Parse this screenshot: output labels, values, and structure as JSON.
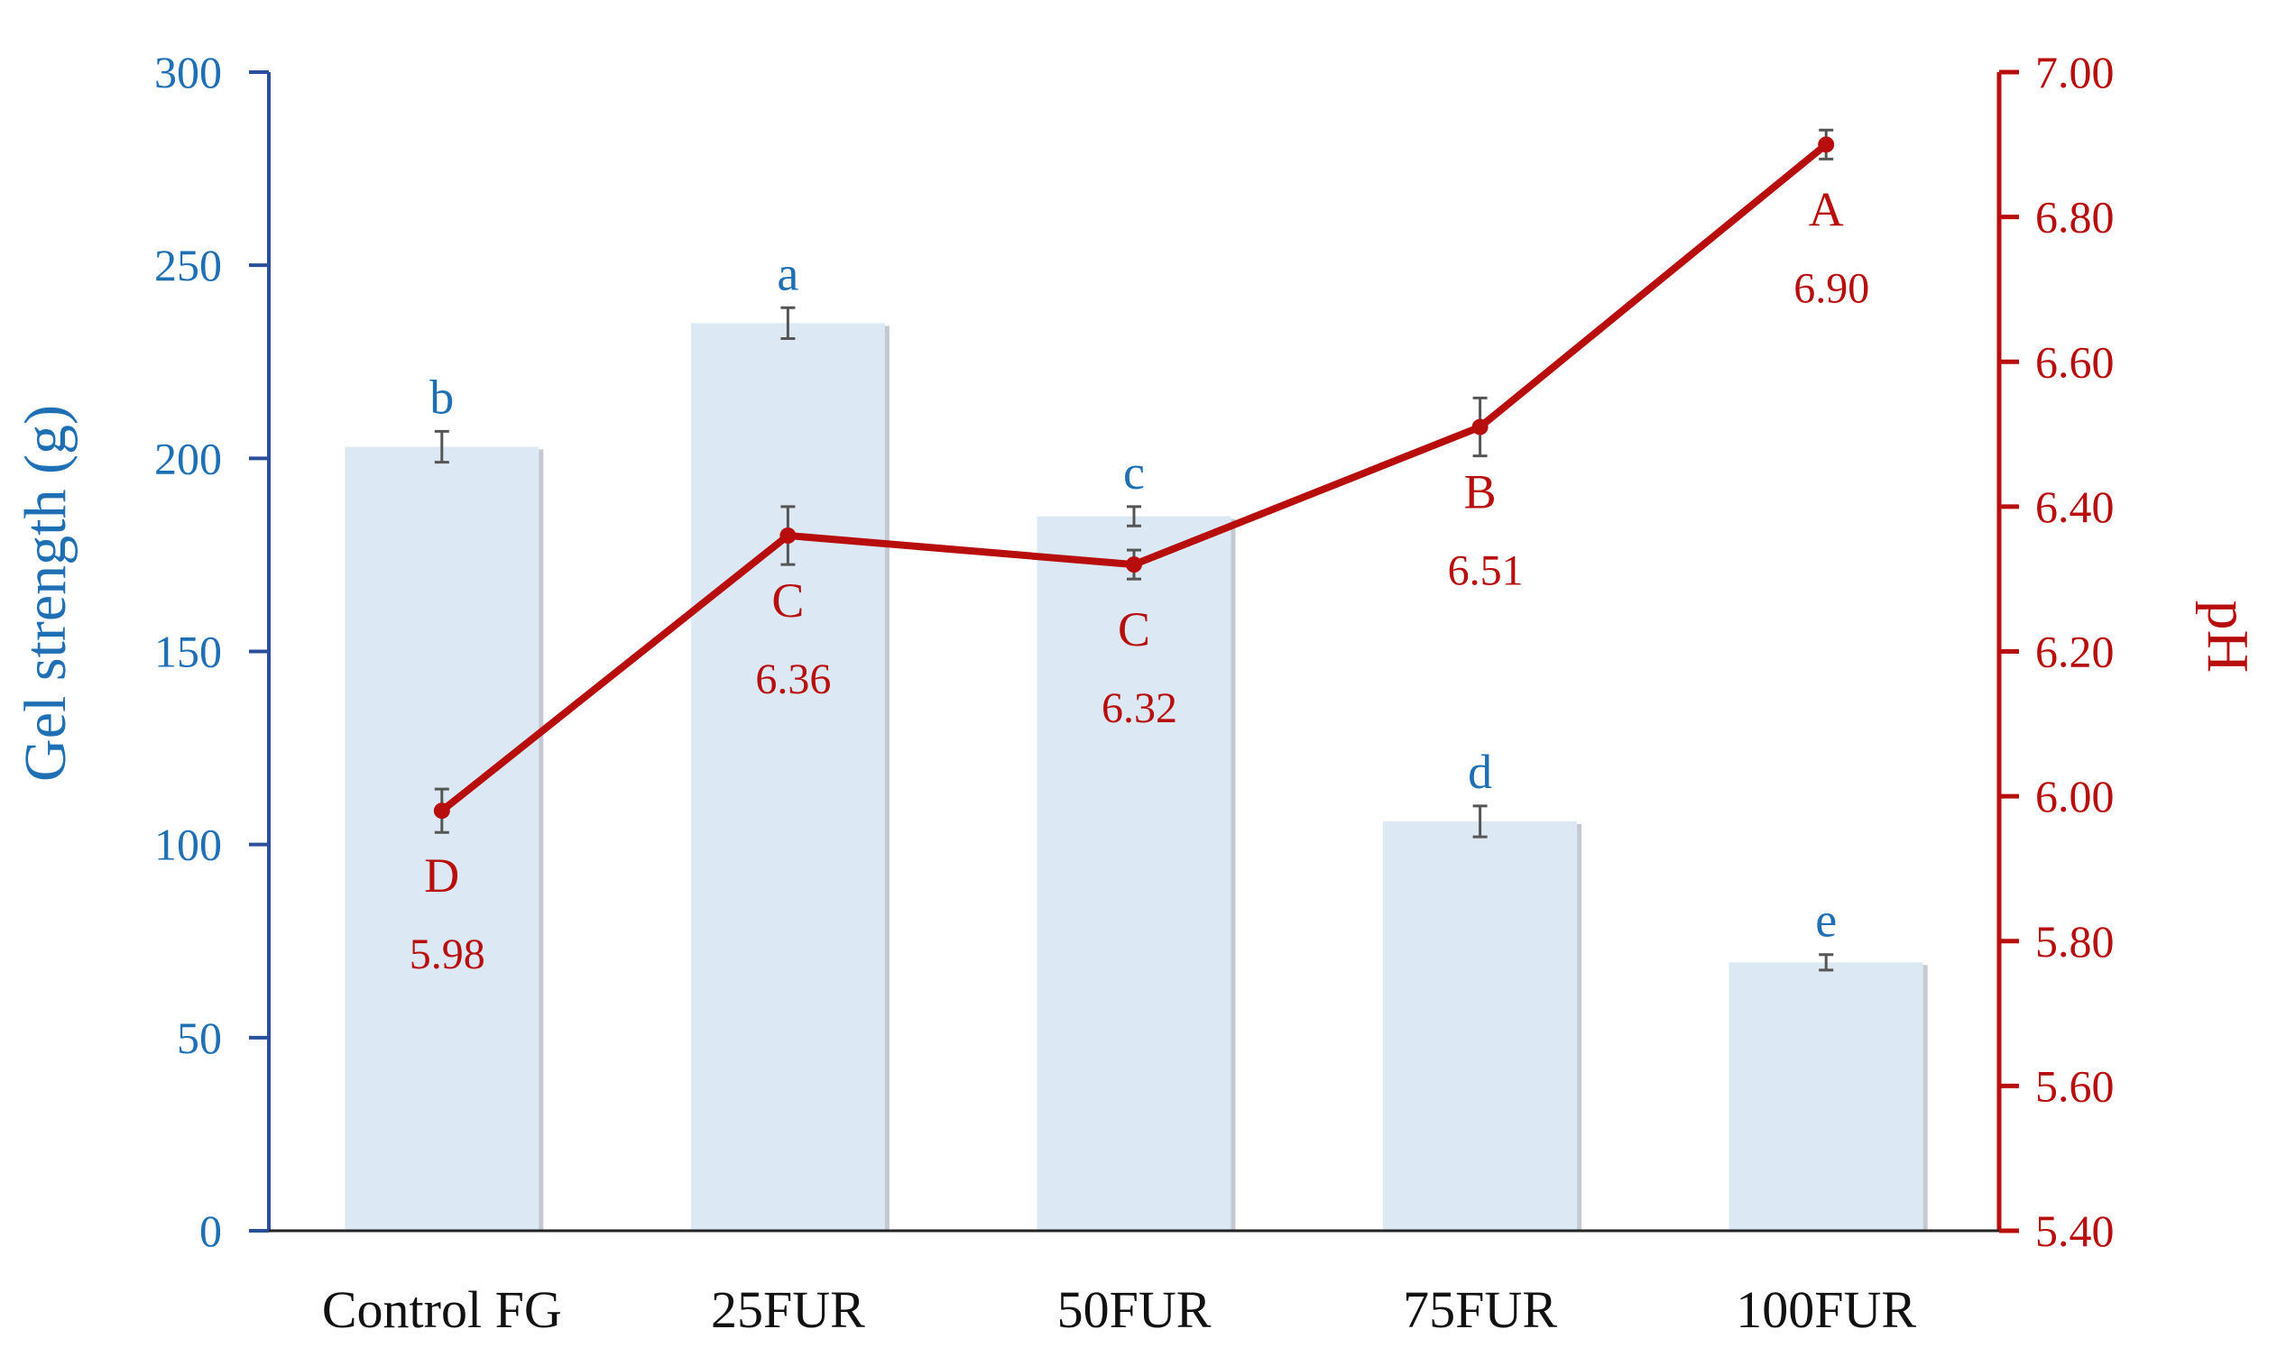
{
  "chart_data": {
    "type": "bar+line",
    "categories": [
      "Control FG",
      "25FUR",
      "50FUR",
      "75FUR",
      "100FUR"
    ],
    "bars": {
      "axis_label": "Gel strength (g)",
      "values": [
        203,
        235,
        185,
        106,
        69.5
      ],
      "errors": [
        4,
        4,
        2.5,
        4,
        2
      ],
      "letters": [
        "b",
        "a",
        "c",
        "d",
        "e"
      ],
      "ylim": [
        0,
        300
      ],
      "ticks": [
        "0",
        "50",
        "100",
        "150",
        "200",
        "250",
        "300"
      ],
      "color": "#dde8f5",
      "axis_color": "#1f6fb4"
    },
    "line": {
      "axis_label": "pH",
      "values": [
        5.98,
        6.36,
        6.32,
        6.51,
        6.9
      ],
      "errors": [
        0.03,
        0.04,
        0.02,
        0.04,
        0.02
      ],
      "letters": [
        "D",
        "C",
        "C",
        "B",
        "A"
      ],
      "value_labels": [
        "5.98",
        "6.36",
        "6.32",
        "6.51",
        "6.90"
      ],
      "ylim": [
        5.4,
        7.0
      ],
      "ticks": [
        "5.40",
        "5.60",
        "5.80",
        "6.00",
        "6.20",
        "6.40",
        "6.60",
        "6.80",
        "7.00"
      ],
      "color": "#b80d0d"
    }
  }
}
